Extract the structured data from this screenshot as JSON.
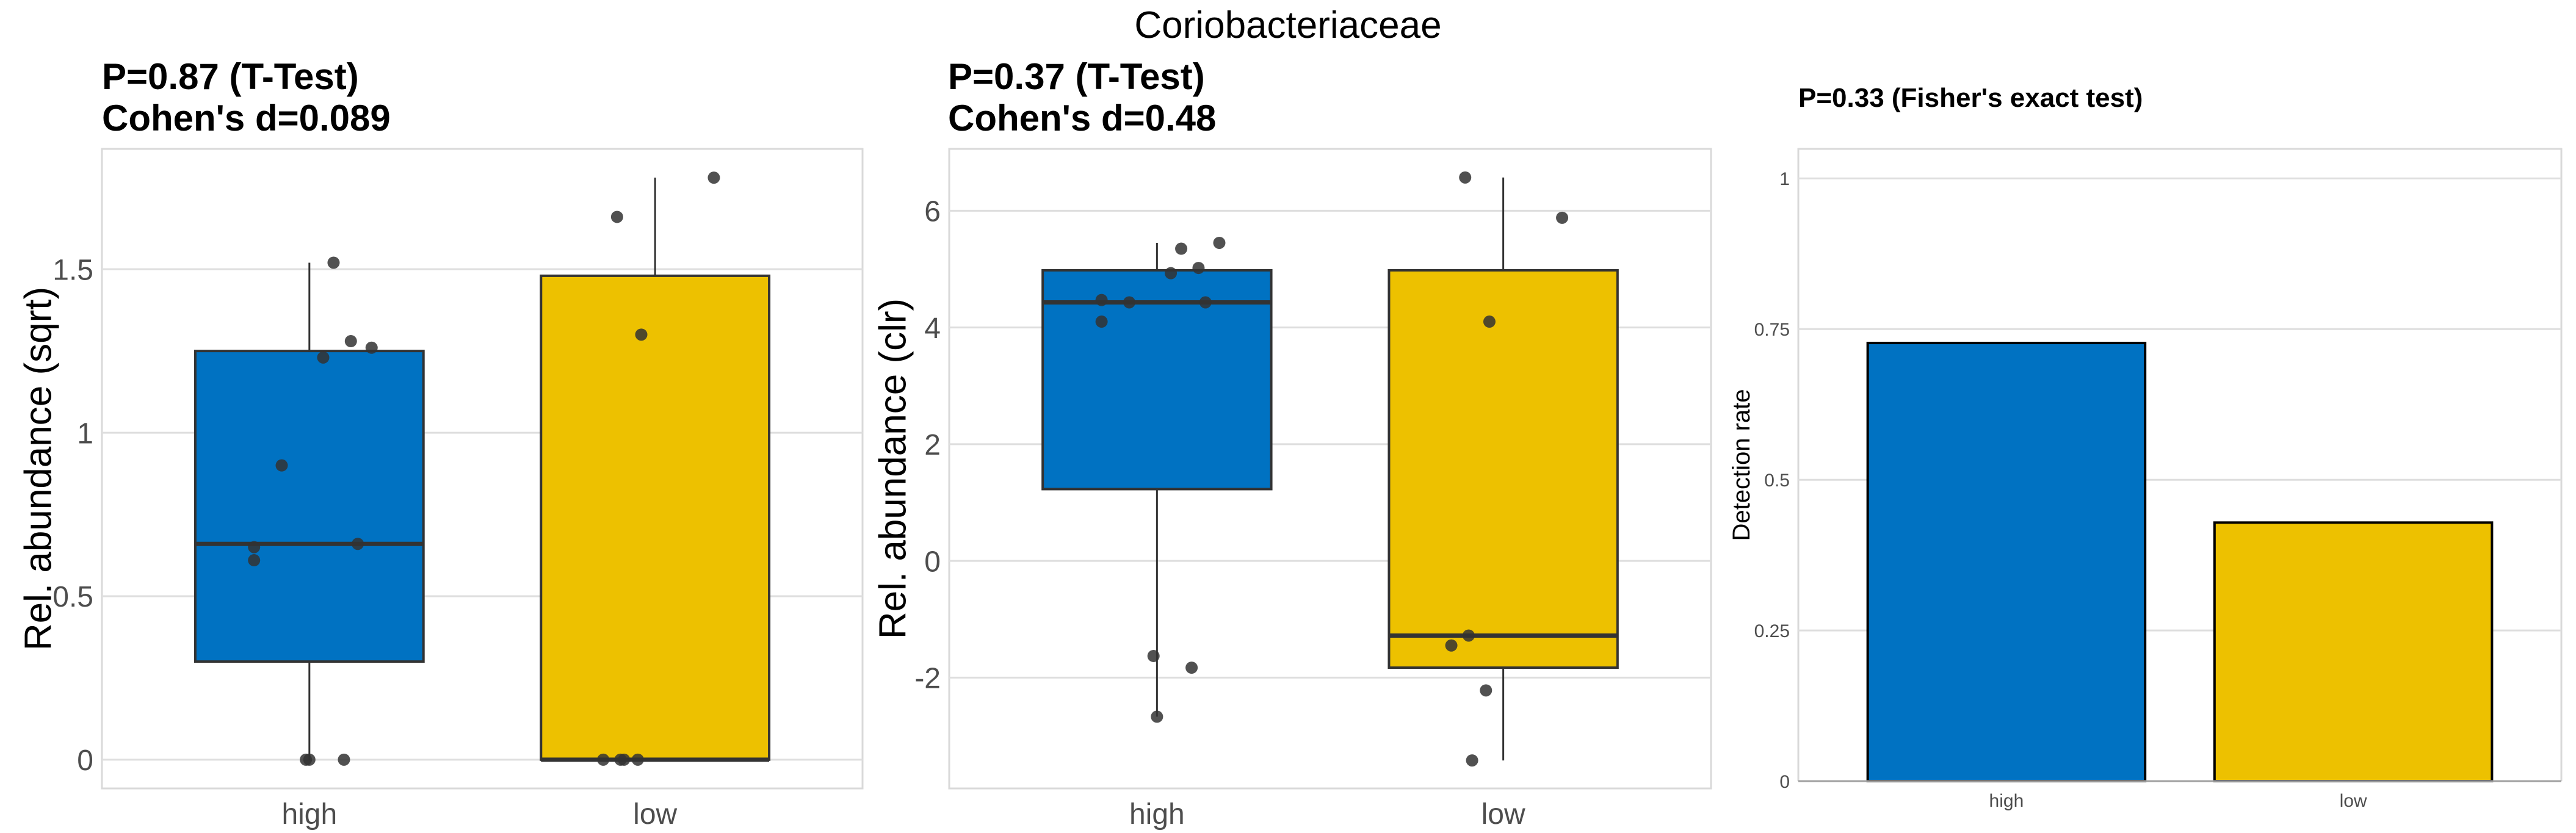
{
  "title": "Coriobacteriaceae",
  "colors": {
    "high": "#0072C2",
    "low": "#EDC100",
    "point": "#333333",
    "grid": "#DEDEDE"
  },
  "chart_data": [
    {
      "type": "box",
      "title_lines": [
        "P=0.87 (T-Test)",
        "Cohen's d=0.089"
      ],
      "ylabel": "Rel. abundance (sqrt)",
      "categories": [
        "high",
        "low"
      ],
      "yticks": [
        0,
        0.5,
        1,
        1.5
      ],
      "ytick_labels": [
        "0",
        "0.5",
        "1",
        "1.5"
      ],
      "ylim": [
        -0.088,
        1.868
      ],
      "grid": true,
      "boxes": [
        {
          "q1": 0.3,
          "median": 0.66,
          "q3": 1.25,
          "whisker_low": 0,
          "whisker_high": 1.52
        },
        {
          "q1": 0,
          "median": 0,
          "q3": 1.48,
          "whisker_low": 0,
          "whisker_high": 1.78
        }
      ],
      "points": [
        {
          "values": [
            1.52,
            1.28,
            1.26,
            1.23,
            0.9,
            0.66,
            0.65,
            0.61,
            0,
            0,
            0
          ],
          "jitter": [
            0.07,
            0.12,
            0.18,
            0.04,
            -0.08,
            0.14,
            -0.16,
            -0.16,
            -0.01,
            0,
            0.1
          ]
        },
        {
          "values": [
            1.78,
            1.66,
            1.3,
            0,
            0,
            0,
            0
          ],
          "jitter": [
            0.17,
            -0.11,
            -0.04,
            -0.15,
            -0.1,
            -0.09,
            -0.05
          ]
        }
      ]
    },
    {
      "type": "box",
      "title_lines": [
        "P=0.37 (T-Test)",
        "Cohen's d=0.48"
      ],
      "ylabel": "Rel. abundance (clr)",
      "categories": [
        "high",
        "low"
      ],
      "yticks": [
        -2,
        0,
        2,
        4,
        6
      ],
      "ytick_labels": [
        "-2",
        "0",
        "2",
        "4",
        "6"
      ],
      "ylim": [
        -3.9,
        7.06
      ],
      "grid": true,
      "boxes": [
        {
          "q1": 1.23,
          "median": 4.43,
          "q3": 4.98,
          "whisker_low": -2.67,
          "whisker_high": 5.45
        },
        {
          "q1": -1.83,
          "median": -1.28,
          "q3": 4.98,
          "whisker_low": -3.42,
          "whisker_high": 6.57
        }
      ],
      "points": [
        {
          "values": [
            5.45,
            5.35,
            5.02,
            4.93,
            4.47,
            4.43,
            4.43,
            4.1,
            -1.63,
            -1.83,
            -2.67
          ],
          "jitter": [
            0.18,
            0.07,
            0.12,
            0.04,
            -0.16,
            -0.08,
            0.14,
            -0.16,
            -0.01,
            0.1,
            0
          ]
        },
        {
          "values": [
            6.57,
            5.88,
            4.1,
            -1.28,
            -1.45,
            -2.22,
            -3.42
          ],
          "jitter": [
            -0.11,
            0.17,
            -0.04,
            -0.1,
            -0.15,
            -0.05,
            -0.09
          ]
        }
      ]
    },
    {
      "type": "bar",
      "title_lines": [
        "P=0.33 (Fisher's exact test)"
      ],
      "ylabel": "Detection rate",
      "categories": [
        "high",
        "low"
      ],
      "values": [
        0.727,
        0.429
      ],
      "yticks": [
        0,
        0.25,
        0.5,
        0.75,
        1
      ],
      "ytick_labels": [
        "0",
        "0.25",
        "0.5",
        "0.75",
        "1"
      ],
      "ylim": [
        0,
        1.049
      ],
      "grid": true
    }
  ]
}
